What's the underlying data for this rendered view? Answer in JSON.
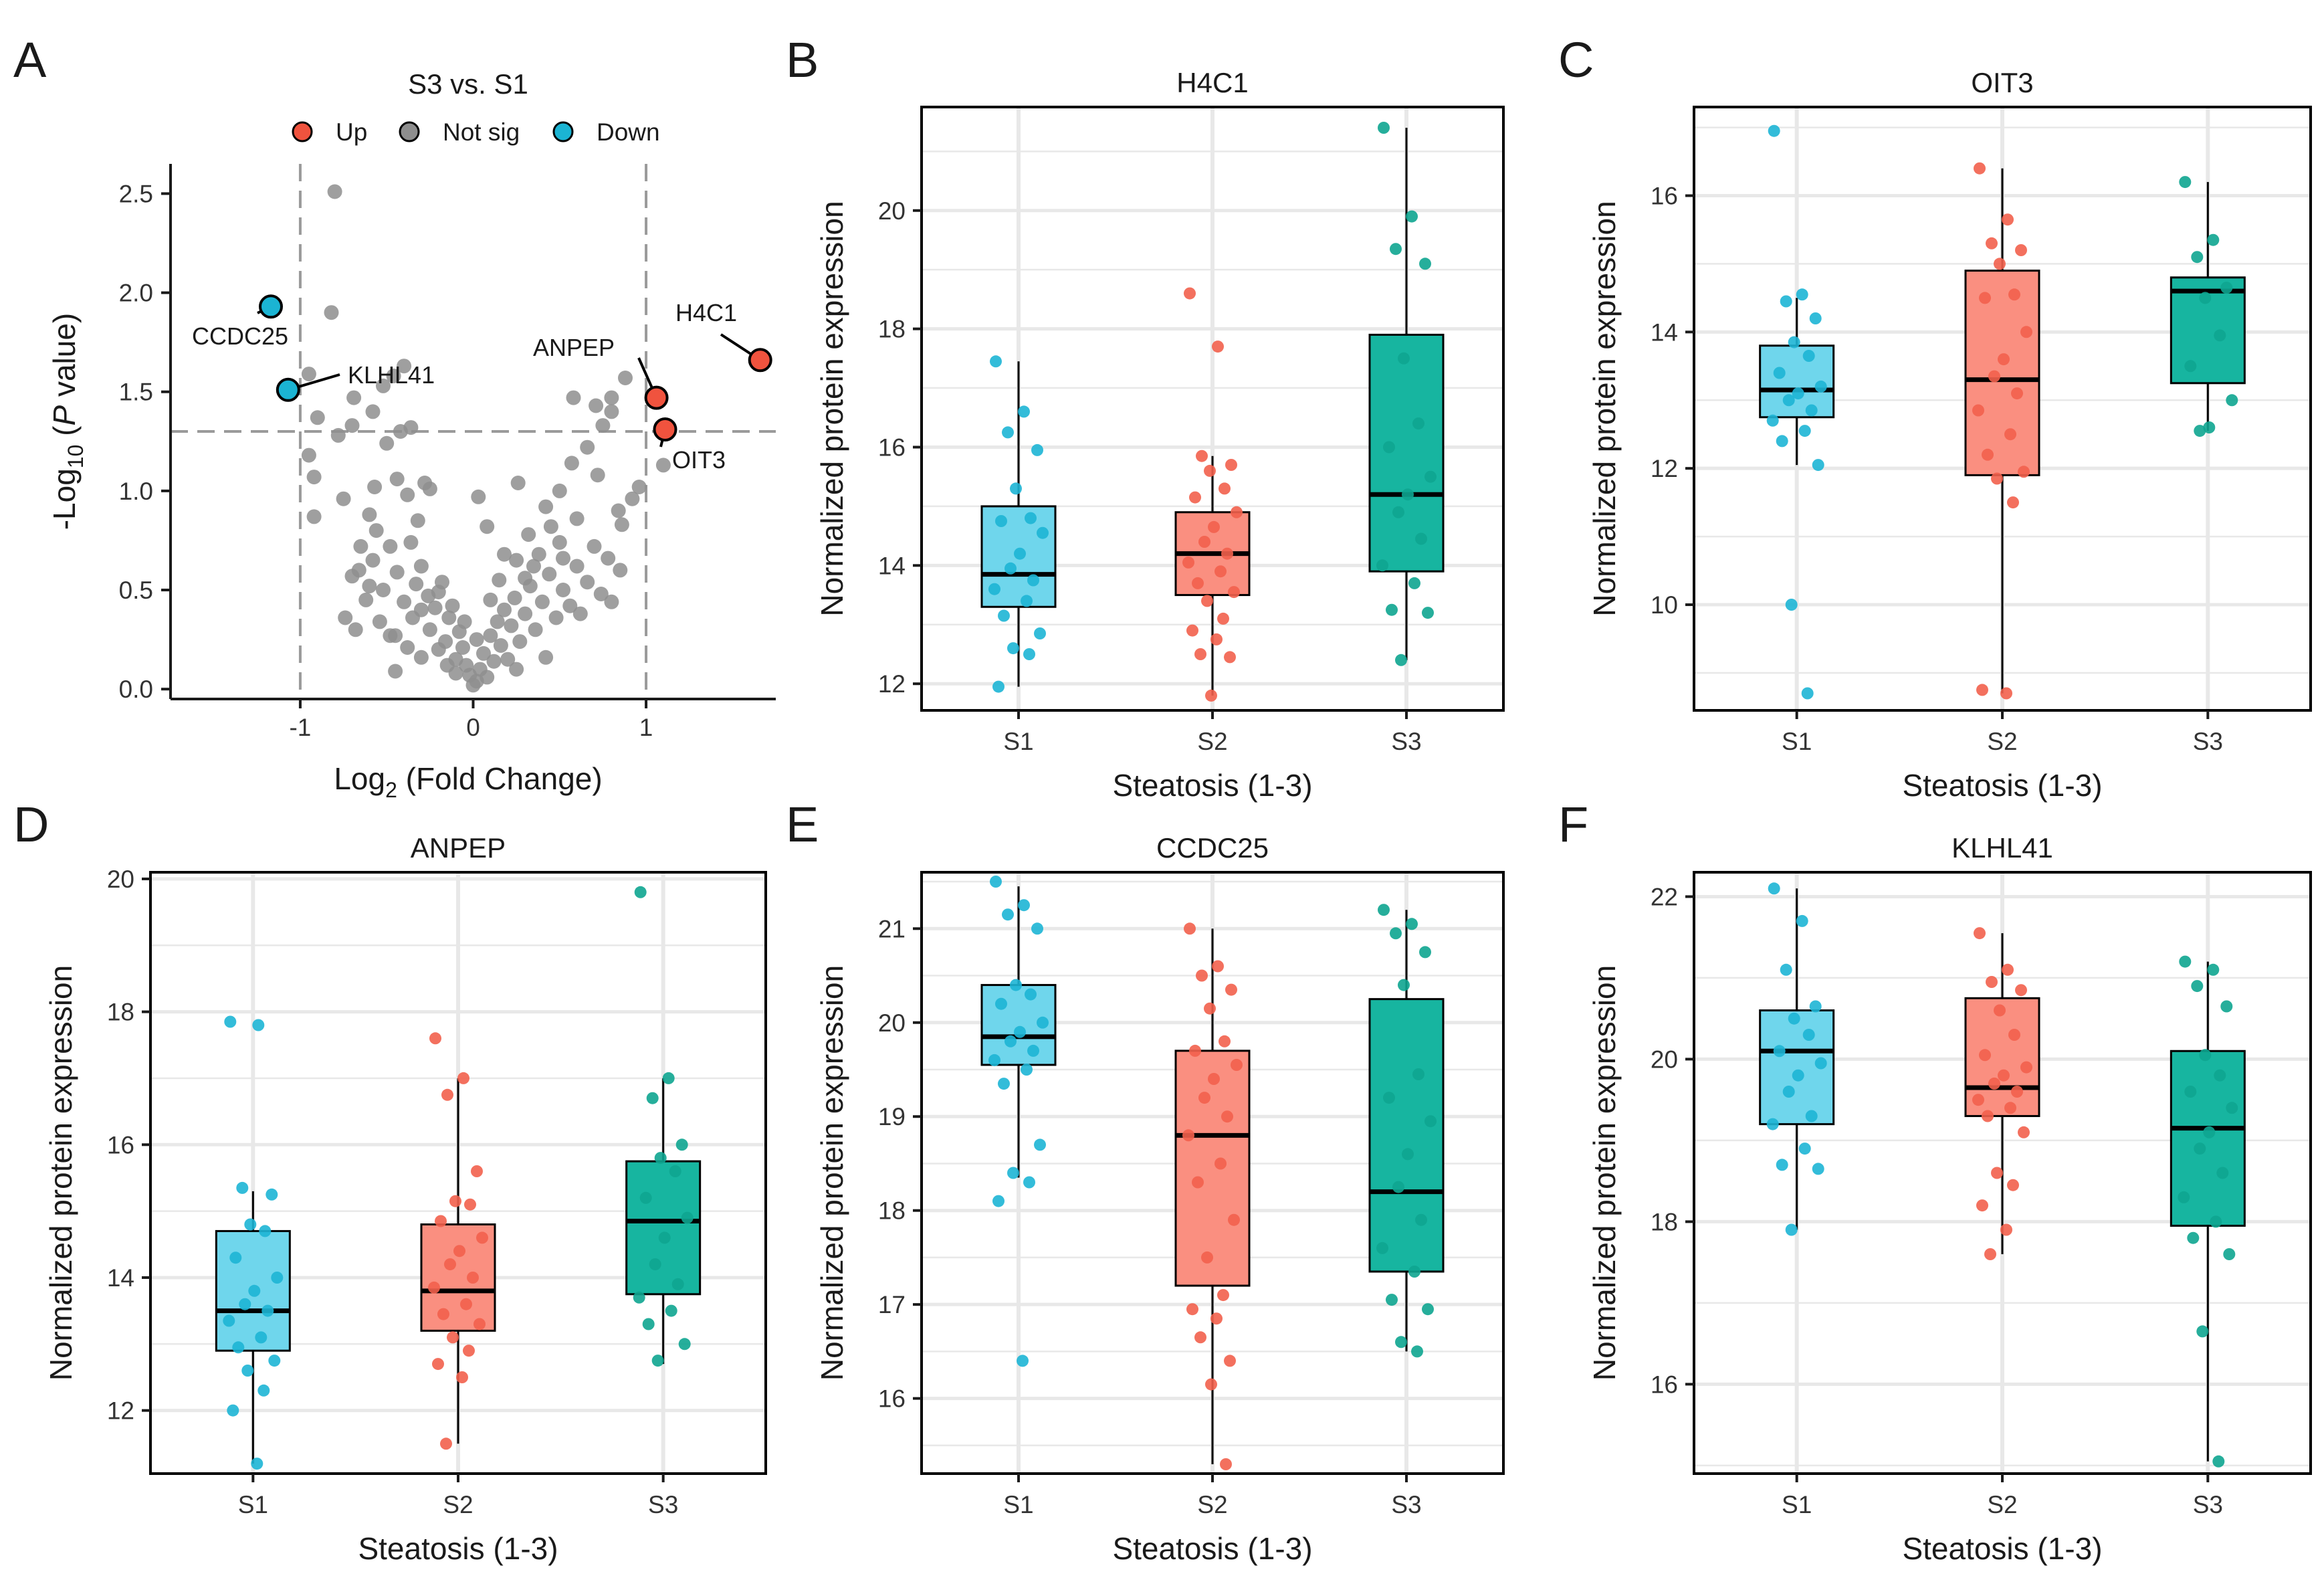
{
  "colors": {
    "up": "#F0533E",
    "not_sig": "#8E8E8E",
    "down": "#1BB4D3",
    "s1_fill": "#6FD6EC",
    "s2_fill": "#FA8F80",
    "s3_fill": "#17B5A0",
    "s1_point": "#1DB5D5",
    "s2_point": "#F2604C",
    "s3_point": "#0EA590",
    "grid": "#E8E8E8",
    "dash": "#9A9A9A"
  },
  "chart_data": [
    {
      "panel": "A",
      "type": "scatter",
      "title": "S3 vs. S1",
      "xlabel": "Log₂ (Fold Change)",
      "ylabel": "-Log₁₀ (P value)",
      "xlim": [
        -1.75,
        1.75
      ],
      "ylim": [
        -0.05,
        2.65
      ],
      "xticks": [
        -1,
        0,
        1
      ],
      "yticks": [
        "0.0",
        "0.5",
        "1.0",
        "1.5",
        "2.0",
        "2.5"
      ],
      "thresholds": {
        "fold_change": [
          -1,
          1
        ],
        "p_value_neglog10": 1.3
      },
      "legend": {
        "position": "top",
        "items": [
          {
            "label": "Up",
            "key": "up"
          },
          {
            "label": "Not sig",
            "key": "not_sig"
          },
          {
            "label": "Down",
            "key": "down"
          }
        ]
      },
      "highlighted": [
        {
          "label": "H4C1",
          "x": 1.66,
          "y": 1.66,
          "status": "up"
        },
        {
          "label": "ANPEP",
          "x": 1.06,
          "y": 1.47,
          "status": "up"
        },
        {
          "label": "OIT3",
          "x": 1.11,
          "y": 1.31,
          "status": "up"
        },
        {
          "label": "CCDC25",
          "x": -1.17,
          "y": 1.93,
          "status": "down"
        },
        {
          "label": "KLHL41",
          "x": -1.07,
          "y": 1.51,
          "status": "down"
        }
      ],
      "nonsig_points": [
        [
          -0.8,
          2.51
        ],
        [
          -0.82,
          1.9
        ],
        [
          -0.95,
          1.59
        ],
        [
          -0.69,
          1.47
        ],
        [
          -0.9,
          1.37
        ],
        [
          -0.95,
          1.18
        ],
        [
          -0.92,
          1.07
        ],
        [
          -0.78,
          1.28
        ],
        [
          -0.4,
          1.63
        ],
        [
          -0.46,
          1.58
        ],
        [
          -0.52,
          1.53
        ],
        [
          -0.58,
          1.4
        ],
        [
          -0.7,
          1.33
        ],
        [
          -0.42,
          1.3
        ],
        [
          -0.36,
          1.32
        ],
        [
          -0.5,
          1.24
        ],
        [
          -0.92,
          0.87
        ],
        [
          -0.75,
          0.96
        ],
        [
          -0.6,
          0.88
        ],
        [
          -0.57,
          1.02
        ],
        [
          -0.44,
          1.06
        ],
        [
          -0.38,
          0.98
        ],
        [
          -0.28,
          1.04
        ],
        [
          -0.25,
          1.01
        ],
        [
          0.03,
          0.97
        ],
        [
          0.08,
          0.82
        ],
        [
          0.26,
          1.04
        ],
        [
          0.5,
          1.0
        ],
        [
          0.57,
          1.14
        ],
        [
          0.72,
          1.08
        ],
        [
          0.66,
          1.22
        ],
        [
          0.75,
          1.33
        ],
        [
          0.8,
          1.4
        ],
        [
          0.8,
          1.47
        ],
        [
          0.88,
          1.57
        ],
        [
          0.58,
          1.47
        ],
        [
          0.71,
          1.43
        ],
        [
          0.84,
          0.9
        ],
        [
          0.92,
          0.96
        ],
        [
          0.96,
          1.02
        ],
        [
          1.1,
          1.13
        ],
        [
          0.86,
          0.83
        ],
        [
          0.45,
          0.82
        ],
        [
          0.5,
          0.74
        ],
        [
          0.32,
          0.78
        ],
        [
          0.38,
          0.68
        ],
        [
          0.25,
          0.65
        ],
        [
          0.3,
          0.56
        ],
        [
          0.6,
          0.62
        ],
        [
          0.7,
          0.72
        ],
        [
          0.78,
          0.66
        ],
        [
          0.85,
          0.6
        ],
        [
          -0.65,
          0.72
        ],
        [
          -0.58,
          0.65
        ],
        [
          -0.7,
          0.57
        ],
        [
          -0.48,
          0.72
        ],
        [
          -0.52,
          0.5
        ],
        [
          -0.62,
          0.45
        ],
        [
          -0.36,
          0.74
        ],
        [
          -0.3,
          0.62
        ],
        [
          -0.74,
          0.36
        ],
        [
          -0.68,
          0.3
        ],
        [
          -0.45,
          0.27
        ],
        [
          -0.2,
          0.49
        ],
        [
          -0.3,
          0.16
        ],
        [
          -0.45,
          0.09
        ],
        [
          -0.48,
          0.27
        ],
        [
          -0.35,
          0.36
        ],
        [
          -0.25,
          0.3
        ],
        [
          -0.16,
          0.24
        ],
        [
          -0.14,
          0.36
        ],
        [
          -0.1,
          0.15
        ],
        [
          -0.08,
          0.29
        ],
        [
          -0.06,
          0.21
        ],
        [
          -0.04,
          0.12
        ],
        [
          -0.02,
          0.07
        ],
        [
          0.0,
          0.02
        ],
        [
          0.02,
          0.04
        ],
        [
          0.04,
          0.1
        ],
        [
          0.06,
          0.18
        ],
        [
          0.08,
          0.06
        ],
        [
          0.1,
          0.27
        ],
        [
          0.12,
          0.14
        ],
        [
          0.14,
          0.34
        ],
        [
          0.16,
          0.22
        ],
        [
          0.18,
          0.4
        ],
        [
          0.2,
          0.15
        ],
        [
          0.22,
          0.32
        ],
        [
          0.24,
          0.46
        ],
        [
          0.27,
          0.24
        ],
        [
          0.3,
          0.38
        ],
        [
          0.33,
          0.52
        ],
        [
          0.36,
          0.3
        ],
        [
          0.4,
          0.44
        ],
        [
          0.44,
          0.58
        ],
        [
          0.48,
          0.36
        ],
        [
          0.52,
          0.5
        ],
        [
          0.56,
          0.42
        ],
        [
          0.62,
          0.38
        ],
        [
          0.66,
          0.54
        ],
        [
          0.74,
          0.48
        ],
        [
          0.8,
          0.44
        ],
        [
          -0.22,
          0.41
        ],
        [
          -0.18,
          0.54
        ],
        [
          -0.26,
          0.47
        ],
        [
          -0.33,
          0.53
        ],
        [
          -0.4,
          0.44
        ],
        [
          -0.44,
          0.59
        ],
        [
          -0.54,
          0.34
        ],
        [
          -0.6,
          0.52
        ],
        [
          -0.66,
          0.6
        ],
        [
          -0.3,
          0.4
        ],
        [
          -0.12,
          0.42
        ],
        [
          -0.1,
          0.08
        ],
        [
          0.1,
          0.45
        ],
        [
          0.15,
          0.55
        ],
        [
          -0.05,
          0.34
        ],
        [
          -0.2,
          0.2
        ],
        [
          0.02,
          0.25
        ],
        [
          -0.15,
          0.12
        ],
        [
          0.25,
          0.1
        ],
        [
          -0.38,
          0.21
        ],
        [
          0.42,
          0.16
        ],
        [
          0.35,
          0.62
        ],
        [
          -0.56,
          0.8
        ],
        [
          0.6,
          0.86
        ],
        [
          0.42,
          0.92
        ],
        [
          -0.32,
          0.85
        ],
        [
          0.18,
          0.68
        ],
        [
          0.52,
          0.66
        ]
      ]
    },
    {
      "panel": "B",
      "type": "boxplot",
      "title": "H4C1",
      "xlabel": "Steatosis (1-3)",
      "ylabel": "Normalized protein expression",
      "categories": [
        "S1",
        "S2",
        "S3"
      ],
      "ylim": [
        11.55,
        21.75
      ],
      "yticks": [
        12,
        14,
        16,
        18,
        20
      ],
      "boxes": [
        {
          "whisker_low": 11.95,
          "q1": 13.3,
          "median": 13.85,
          "q3": 15.0,
          "whisker_high": 17.45
        },
        {
          "whisker_low": 11.8,
          "q1": 13.5,
          "median": 14.2,
          "q3": 14.9,
          "whisker_high": 15.85
        },
        {
          "whisker_low": 12.4,
          "q1": 13.9,
          "median": 15.2,
          "q3": 17.9,
          "whisker_high": 21.4
        }
      ],
      "points": [
        [
          17.45,
          16.6,
          16.25,
          15.95,
          15.3,
          14.8,
          14.75,
          14.55,
          14.2,
          13.95,
          13.75,
          13.6,
          13.4,
          13.15,
          12.85,
          12.6,
          12.5,
          11.95
        ],
        [
          18.6,
          17.7,
          15.85,
          15.7,
          15.6,
          15.3,
          15.15,
          14.9,
          14.65,
          14.4,
          14.2,
          14.05,
          13.9,
          13.7,
          13.55,
          13.4,
          13.1,
          12.9,
          12.75,
          12.5,
          12.45,
          11.8
        ],
        [
          21.4,
          19.9,
          19.35,
          19.1,
          17.5,
          16.4,
          16.0,
          15.5,
          15.2,
          14.9,
          14.45,
          14.0,
          13.7,
          13.25,
          13.2,
          12.4
        ]
      ]
    },
    {
      "panel": "C",
      "type": "boxplot",
      "title": "OIT3",
      "xlabel": "Steatosis (1-3)",
      "ylabel": "Normalized protein expression",
      "categories": [
        "S1",
        "S2",
        "S3"
      ],
      "ylim": [
        8.45,
        17.3
      ],
      "yticks": [
        10,
        12,
        14,
        16
      ],
      "boxes": [
        {
          "whisker_low": 12.05,
          "q1": 12.75,
          "median": 13.15,
          "q3": 13.8,
          "whisker_high": 14.5
        },
        {
          "whisker_low": 8.7,
          "q1": 11.9,
          "median": 13.3,
          "q3": 14.9,
          "whisker_high": 16.4
        },
        {
          "whisker_low": 12.55,
          "q1": 13.25,
          "median": 14.6,
          "q3": 14.8,
          "whisker_high": 16.2
        }
      ],
      "points": [
        [
          16.95,
          14.55,
          14.45,
          14.2,
          13.85,
          13.65,
          13.4,
          13.2,
          13.1,
          13.0,
          12.85,
          12.7,
          12.55,
          12.4,
          12.05,
          10.0,
          8.7
        ],
        [
          16.4,
          15.65,
          15.3,
          15.2,
          15.0,
          14.55,
          14.5,
          14.0,
          13.6,
          13.35,
          13.1,
          12.85,
          12.5,
          12.2,
          11.95,
          11.85,
          11.5,
          8.75,
          8.7
        ],
        [
          16.2,
          15.35,
          15.1,
          14.65,
          14.5,
          13.95,
          13.5,
          13.0,
          12.6,
          12.55
        ]
      ]
    },
    {
      "panel": "D",
      "type": "boxplot",
      "title": "ANPEP",
      "xlabel": "Steatosis (1-3)",
      "ylabel": "Normalized protein expression",
      "categories": [
        "S1",
        "S2",
        "S3"
      ],
      "ylim": [
        11.05,
        20.1
      ],
      "yticks": [
        12,
        14,
        16,
        18,
        20
      ],
      "boxes": [
        {
          "whisker_low": 11.2,
          "q1": 12.9,
          "median": 13.5,
          "q3": 14.7,
          "whisker_high": 15.3
        },
        {
          "whisker_low": 11.5,
          "q1": 13.2,
          "median": 13.8,
          "q3": 14.8,
          "whisker_high": 17.0
        },
        {
          "whisker_low": 12.7,
          "q1": 13.75,
          "median": 14.85,
          "q3": 15.75,
          "whisker_high": 17.0
        }
      ],
      "points": [
        [
          17.85,
          17.8,
          15.35,
          15.25,
          14.8,
          14.7,
          14.3,
          14.0,
          13.8,
          13.6,
          13.5,
          13.35,
          13.1,
          12.95,
          12.75,
          12.6,
          12.3,
          12.0,
          11.2
        ],
        [
          17.6,
          17.0,
          16.75,
          15.6,
          15.15,
          15.1,
          14.85,
          14.6,
          14.4,
          14.2,
          14.0,
          13.85,
          13.6,
          13.45,
          13.3,
          13.1,
          12.9,
          12.7,
          12.5,
          11.5
        ],
        [
          19.8,
          17.0,
          16.7,
          16.0,
          15.8,
          15.6,
          15.2,
          14.9,
          14.6,
          14.2,
          13.9,
          13.7,
          13.5,
          13.3,
          13.0,
          12.75
        ]
      ]
    },
    {
      "panel": "E",
      "type": "boxplot",
      "title": "CCDC25",
      "xlabel": "Steatosis (1-3)",
      "ylabel": "Normalized protein expression",
      "categories": [
        "S1",
        "S2",
        "S3"
      ],
      "ylim": [
        15.2,
        21.6
      ],
      "yticks": [
        16,
        17,
        18,
        19,
        20,
        21
      ],
      "boxes": [
        {
          "whisker_low": 18.35,
          "q1": 19.55,
          "median": 19.85,
          "q3": 20.4,
          "whisker_high": 21.45
        },
        {
          "whisker_low": 15.3,
          "q1": 17.2,
          "median": 18.8,
          "q3": 19.7,
          "whisker_high": 21.0
        },
        {
          "whisker_low": 16.5,
          "q1": 17.35,
          "median": 18.2,
          "q3": 20.25,
          "whisker_high": 21.2
        }
      ],
      "points": [
        [
          21.5,
          21.25,
          21.15,
          21.0,
          20.4,
          20.3,
          20.2,
          20.0,
          19.9,
          19.8,
          19.7,
          19.6,
          19.5,
          19.35,
          18.7,
          18.4,
          18.3,
          18.1,
          16.4
        ],
        [
          21.0,
          20.6,
          20.5,
          20.35,
          20.15,
          19.8,
          19.7,
          19.55,
          19.4,
          19.2,
          19.0,
          18.8,
          18.5,
          18.3,
          17.9,
          17.5,
          17.1,
          16.95,
          16.85,
          16.65,
          16.4,
          16.15,
          15.3
        ],
        [
          21.2,
          21.05,
          20.95,
          20.75,
          20.4,
          19.45,
          19.2,
          18.95,
          18.6,
          18.25,
          17.9,
          17.6,
          17.35,
          17.05,
          16.95,
          16.6,
          16.5
        ]
      ]
    },
    {
      "panel": "F",
      "type": "boxplot",
      "title": "KLHL41",
      "xlabel": "Steatosis (1-3)",
      "ylabel": "Normalized protein expression",
      "categories": [
        "S1",
        "S2",
        "S3"
      ],
      "ylim": [
        14.9,
        22.3
      ],
      "yticks": [
        16,
        18,
        20,
        22
      ],
      "boxes": [
        {
          "whisker_low": 17.9,
          "q1": 19.2,
          "median": 20.1,
          "q3": 20.6,
          "whisker_high": 22.1
        },
        {
          "whisker_low": 17.6,
          "q1": 19.3,
          "median": 19.65,
          "q3": 20.75,
          "whisker_high": 21.55
        },
        {
          "whisker_low": 15.05,
          "q1": 17.95,
          "median": 19.15,
          "q3": 20.1,
          "whisker_high": 21.2
        }
      ],
      "points": [
        [
          22.1,
          21.7,
          21.1,
          20.65,
          20.5,
          20.3,
          20.1,
          19.95,
          19.8,
          19.6,
          19.3,
          19.2,
          18.9,
          18.7,
          18.65,
          17.9
        ],
        [
          21.55,
          21.1,
          20.95,
          20.85,
          20.6,
          20.3,
          20.05,
          19.9,
          19.8,
          19.7,
          19.6,
          19.5,
          19.4,
          19.3,
          19.1,
          18.6,
          18.45,
          18.2,
          17.9,
          17.6
        ],
        [
          21.2,
          21.1,
          20.9,
          20.65,
          20.05,
          19.8,
          19.6,
          19.4,
          19.1,
          18.9,
          18.6,
          18.3,
          18.0,
          17.8,
          17.6,
          16.65,
          15.05
        ]
      ]
    }
  ]
}
